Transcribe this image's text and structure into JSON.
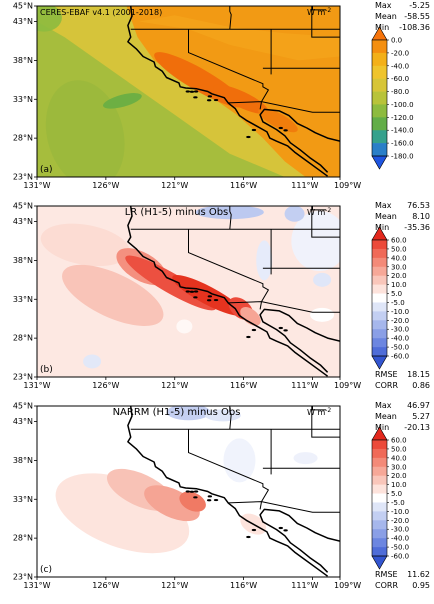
{
  "panels": [
    {
      "id": "a",
      "title": "CERES-EBAF v4.1 (2001-2018)",
      "title_pos": "left",
      "units": "W m",
      "units_sup": "-2",
      "label": "(a)",
      "stats_top": [
        {
          "k": "Max",
          "v": "-5.25"
        },
        {
          "k": "Mean",
          "v": "-58.55"
        },
        {
          "k": "Min",
          "v": "-108.36"
        }
      ],
      "stats_bottom": [],
      "colorbar": {
        "labels": [
          "0.0",
          "-20.0",
          "-40.0",
          "-60.0",
          "-80.0",
          "-100.0",
          "-120.0",
          "-140.0",
          "-160.0",
          "-180.0"
        ],
        "colors": [
          "#f6740b",
          "#f48f10",
          "#f3b019",
          "#efc42c",
          "#d7c537",
          "#b8c33a",
          "#8dbb3f",
          "#62ad48",
          "#35a18c",
          "#2a7fc8",
          "#1f55e0"
        ]
      }
    },
    {
      "id": "b",
      "title": "LR (H1-5) minus Obs",
      "title_pos": "center",
      "units": "W m",
      "units_sup": "-2",
      "label": "(b)",
      "stats_top": [
        {
          "k": "Max",
          "v": "76.53"
        },
        {
          "k": "Mean",
          "v": "8.10"
        },
        {
          "k": "Min",
          "v": "-35.36"
        }
      ],
      "stats_bottom": [
        {
          "k": "RMSE",
          "v": "18.15"
        },
        {
          "k": "CORR",
          "v": "0.86"
        }
      ],
      "colorbar": {
        "labels": [
          "60.0",
          "50.0",
          "40.0",
          "30.0",
          "20.0",
          "10.0",
          "5.0",
          "-5.0",
          "-10.0",
          "-20.0",
          "-30.0",
          "-40.0",
          "-50.0",
          "-60.0"
        ],
        "colors": [
          "#e3281d",
          "#ec4a3a",
          "#f06a58",
          "#f38a78",
          "#f6a898",
          "#f9c6ba",
          "#fde3dc",
          "#ffffff",
          "#dfe6f8",
          "#c3cff2",
          "#a6b7ec",
          "#8a9fe6",
          "#6c86e0",
          "#4f6dd8",
          "#3355d0"
        ]
      }
    },
    {
      "id": "c",
      "title": "NARRM (H1-5) minus Obs",
      "title_pos": "center",
      "units": "W m",
      "units_sup": "-2",
      "label": "(c)",
      "stats_top": [
        {
          "k": "Max",
          "v": "46.97"
        },
        {
          "k": "Mean",
          "v": "5.27"
        },
        {
          "k": "Min",
          "v": "-20.13"
        }
      ],
      "stats_bottom": [
        {
          "k": "RMSE",
          "v": "11.62"
        },
        {
          "k": "CORR",
          "v": "0.95"
        }
      ],
      "colorbar": {
        "labels": [
          "60.0",
          "50.0",
          "40.0",
          "30.0",
          "20.0",
          "10.0",
          "5.0",
          "-5.0",
          "-10.0",
          "-20.0",
          "-30.0",
          "-40.0",
          "-50.0",
          "-60.0"
        ],
        "colors": [
          "#e3281d",
          "#ec4a3a",
          "#f06a58",
          "#f38a78",
          "#f6a898",
          "#f9c6ba",
          "#fde3dc",
          "#ffffff",
          "#dfe6f8",
          "#c3cff2",
          "#a6b7ec",
          "#8a9fe6",
          "#6c86e0",
          "#4f6dd8",
          "#3355d0"
        ]
      }
    }
  ],
  "axes": {
    "lat_labels": [
      "45°N",
      "43°N",
      "38°N",
      "33°N",
      "28°N",
      "23°N"
    ],
    "lon_labels": [
      "131°W",
      "126°W",
      "121°W",
      "116°W",
      "111°W",
      "109°W"
    ],
    "lat_range": [
      23,
      45
    ],
    "lon_range": [
      -131,
      -109
    ]
  }
}
